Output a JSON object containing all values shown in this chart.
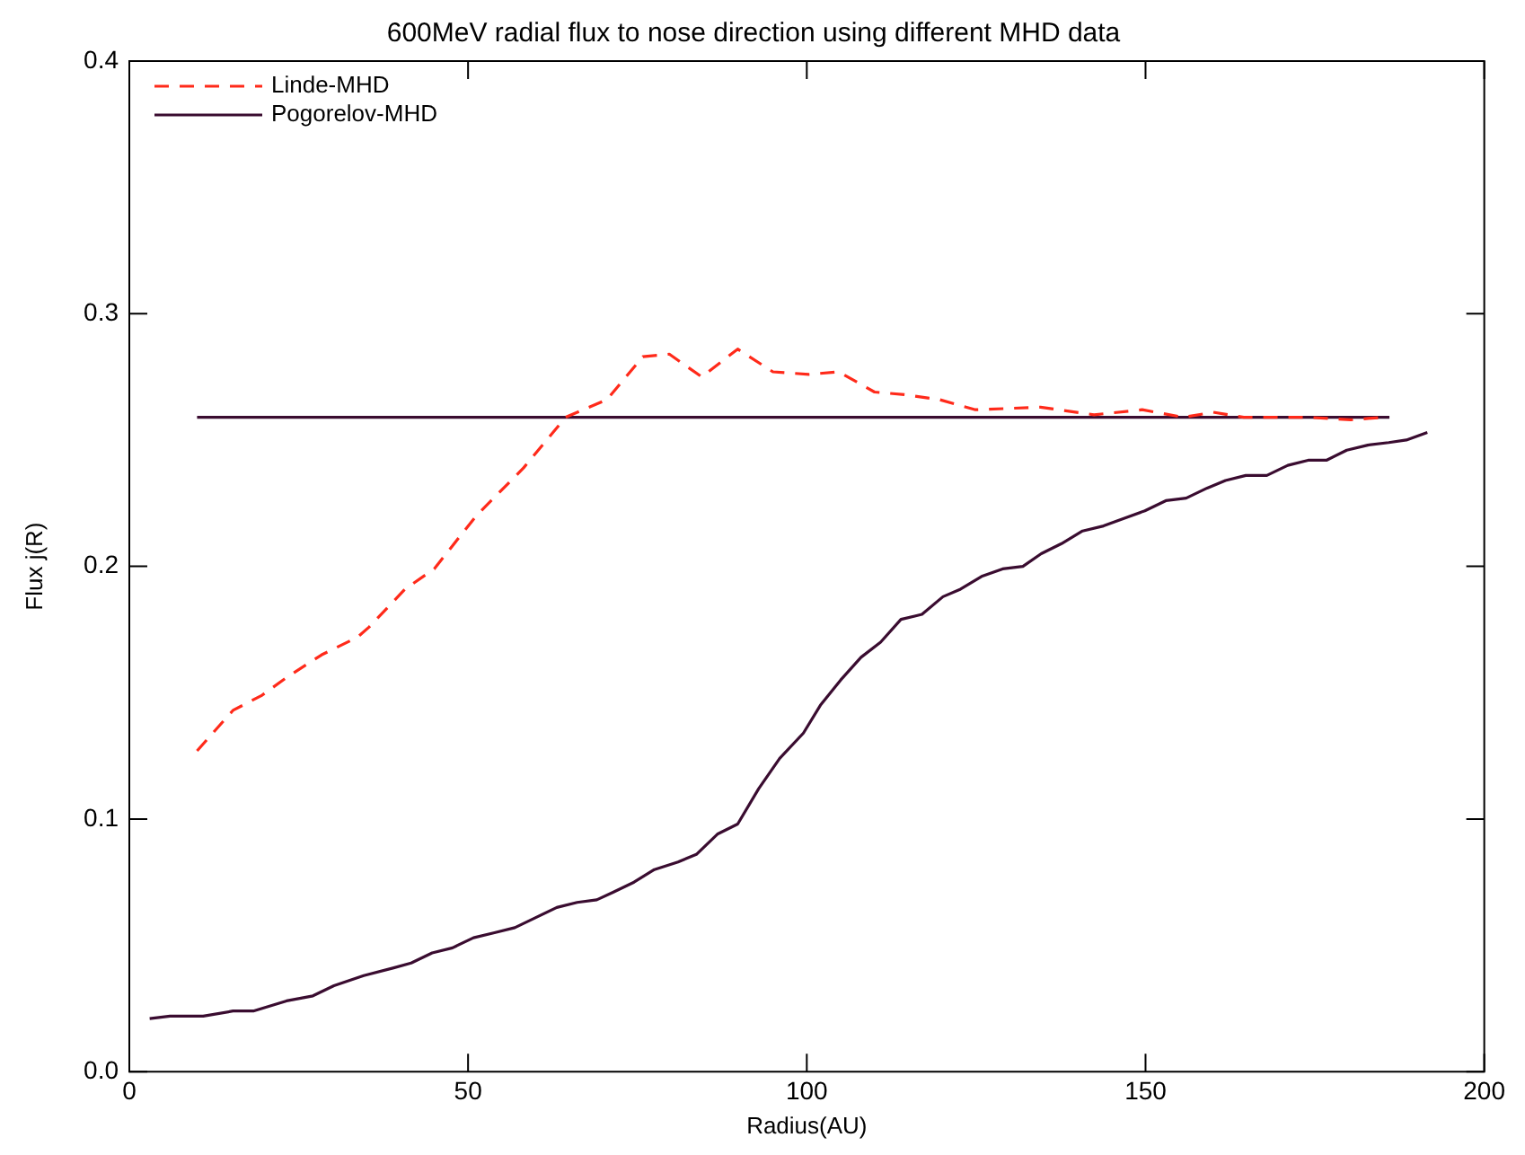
{
  "chart_data": {
    "type": "line",
    "title": "600MeV radial flux to nose direction using different MHD data",
    "xlabel": "Radius(AU)",
    "ylabel": "Flux j(R)",
    "xlim": [
      0,
      200
    ],
    "xticks": [
      0,
      50,
      100,
      150,
      200
    ],
    "ylim": [
      0,
      0.4
    ],
    "yticks": [
      {
        "value": 0,
        "label": "0.0"
      },
      {
        "value": 0.1,
        "label": "0.1"
      },
      {
        "value": 0.2,
        "label": "0.2"
      },
      {
        "value": 0.3,
        "label": "0.3"
      },
      {
        "value": 0.4,
        "label": "0.4"
      }
    ],
    "grid": false,
    "legend": "top left",
    "marker": "none",
    "series": [
      {
        "name": "Linde-MHD",
        "color": "#ff2a1a",
        "line_style": "dashed",
        "x": [
          10,
          15.3,
          19.6,
          23.2,
          28.4,
          33.7,
          35.4,
          40.7,
          45,
          51.2,
          58.2,
          64.4,
          70.5,
          75.8,
          79.7,
          84.5,
          89.8,
          95,
          100.3,
          104.7,
          110,
          114.4,
          119.6,
          124.9,
          134.5,
          142.4,
          149.5,
          155.6,
          160,
          164.5,
          174,
          180.3,
          185
        ],
        "values": [
          0.127,
          0.143,
          0.149,
          0.156,
          0.165,
          0.172,
          0.176,
          0.191,
          0.199,
          0.22,
          0.239,
          0.259,
          0.266,
          0.283,
          0.284,
          0.275,
          0.286,
          0.277,
          0.276,
          0.277,
          0.269,
          0.268,
          0.266,
          0.262,
          0.263,
          0.26,
          0.262,
          0.259,
          0.261,
          0.259,
          0.259,
          0.258,
          0.259
        ]
      },
      {
        "name": "Pogorelov-MHD",
        "color": "#3a0c30",
        "line_style": "solid",
        "x": [
          3,
          6,
          10.9,
          15.3,
          18.3,
          23.2,
          27.1,
          30.2,
          34.6,
          38.9,
          41.6,
          44.7,
          47.7,
          50.8,
          53.9,
          56.9,
          60,
          63.1,
          66.1,
          69,
          71.4,
          74.5,
          77.5,
          81,
          83.7,
          86.8,
          89.8,
          92.9,
          96,
          99.5,
          102,
          105,
          108,
          110.9,
          113.9,
          117,
          120.1,
          122.7,
          125.8,
          128.9,
          131.9,
          134.6,
          137.6,
          140.7,
          143.8,
          146.8,
          149.9,
          153,
          156,
          159.1,
          161.8,
          164.8,
          167.9,
          171,
          174,
          176.7,
          179.7,
          182.8,
          185.9,
          188.5,
          191.6
        ],
        "values": [
          0.021,
          0.022,
          0.022,
          0.024,
          0.024,
          0.028,
          0.03,
          0.034,
          0.038,
          0.041,
          0.043,
          0.047,
          0.049,
          0.053,
          0.055,
          0.057,
          0.061,
          0.065,
          0.067,
          0.068,
          0.071,
          0.075,
          0.08,
          0.083,
          0.086,
          0.094,
          0.098,
          0.112,
          0.124,
          0.134,
          0.145,
          0.155,
          0.164,
          0.17,
          0.179,
          0.181,
          0.188,
          0.191,
          0.196,
          0.199,
          0.2,
          0.205,
          0.209,
          0.214,
          0.216,
          0.219,
          0.222,
          0.226,
          0.227,
          0.231,
          0.234,
          0.236,
          0.236,
          0.24,
          0.242,
          0.242,
          0.246,
          0.248,
          0.249,
          0.25,
          0.253
        ]
      },
      {
        "color": "#3a0c30",
        "line_style": "solid",
        "x": [
          10,
          186
        ],
        "values": [
          0.259,
          0.259
        ]
      }
    ]
  }
}
